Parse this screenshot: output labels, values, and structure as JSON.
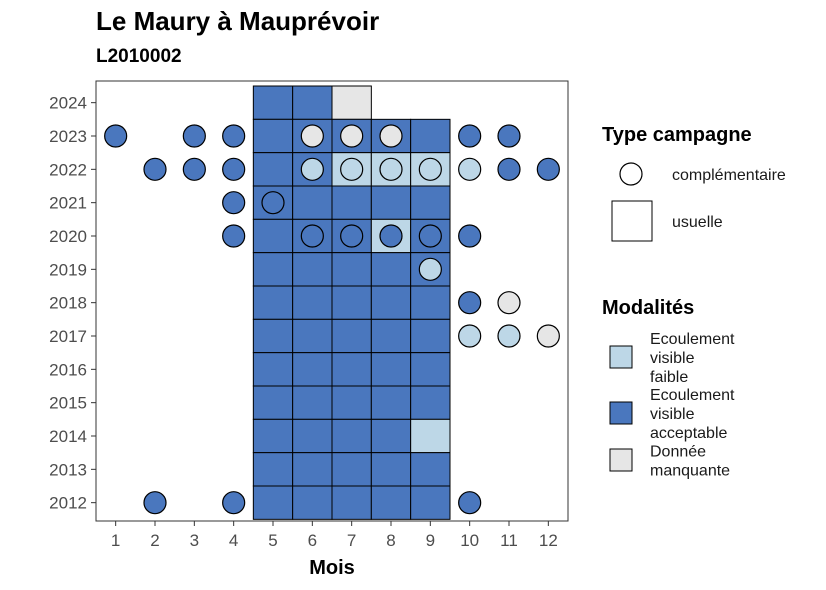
{
  "title": "Le Maury à Mauprévoir",
  "subtitle": "L2010002",
  "colors": {
    "Ecoulement visible faible": "#bdd7e7",
    "Ecoulement visible acceptable": "#4a77be",
    "Donnée manquante": "#e6e6e6"
  },
  "legend": {
    "type_title": "Type campagne",
    "type_items": [
      {
        "shape": "circle",
        "label": "complémentaire"
      },
      {
        "shape": "square",
        "label": "usuelle"
      }
    ],
    "mod_title": "Modalités",
    "mod_items": [
      {
        "key": "Ecoulement visible faible",
        "lines": [
          "Ecoulement",
          "visible",
          "faible"
        ]
      },
      {
        "key": "Ecoulement visible acceptable",
        "lines": [
          "Ecoulement",
          "visible",
          "acceptable"
        ]
      },
      {
        "key": "Donnée manquante",
        "lines": [
          "Donnée",
          "manquante"
        ]
      }
    ]
  },
  "chart_data": {
    "type": "scatter",
    "xlabel": "Mois",
    "ylabel": "",
    "x_ticks": [
      "1",
      "2",
      "3",
      "4",
      "5",
      "6",
      "7",
      "8",
      "9",
      "10",
      "11",
      "12"
    ],
    "y_ticks": [
      "2012",
      "2013",
      "2014",
      "2015",
      "2016",
      "2017",
      "2018",
      "2019",
      "2020",
      "2021",
      "2022",
      "2023",
      "2024"
    ],
    "xlim": [
      0.5,
      12.5
    ],
    "ylim": [
      2011.45,
      2024.65
    ],
    "usuelle": [
      {
        "month": 5,
        "year": 2024,
        "modalite": "Ecoulement visible acceptable"
      },
      {
        "month": 6,
        "year": 2024,
        "modalite": "Ecoulement visible acceptable"
      },
      {
        "month": 7,
        "year": 2024,
        "modalite": "Donnée manquante"
      },
      {
        "month": 5,
        "year": 2023,
        "modalite": "Ecoulement visible acceptable"
      },
      {
        "month": 6,
        "year": 2023,
        "modalite": "Ecoulement visible acceptable"
      },
      {
        "month": 7,
        "year": 2023,
        "modalite": "Ecoulement visible acceptable"
      },
      {
        "month": 8,
        "year": 2023,
        "modalite": "Ecoulement visible acceptable"
      },
      {
        "month": 9,
        "year": 2023,
        "modalite": "Ecoulement visible acceptable"
      },
      {
        "month": 5,
        "year": 2022,
        "modalite": "Ecoulement visible acceptable"
      },
      {
        "month": 6,
        "year": 2022,
        "modalite": "Ecoulement visible acceptable"
      },
      {
        "month": 7,
        "year": 2022,
        "modalite": "Ecoulement visible faible"
      },
      {
        "month": 8,
        "year": 2022,
        "modalite": "Ecoulement visible faible"
      },
      {
        "month": 9,
        "year": 2022,
        "modalite": "Ecoulement visible faible"
      },
      {
        "month": 5,
        "year": 2021,
        "modalite": "Ecoulement visible acceptable"
      },
      {
        "month": 6,
        "year": 2021,
        "modalite": "Ecoulement visible acceptable"
      },
      {
        "month": 7,
        "year": 2021,
        "modalite": "Ecoulement visible acceptable"
      },
      {
        "month": 8,
        "year": 2021,
        "modalite": "Ecoulement visible acceptable"
      },
      {
        "month": 9,
        "year": 2021,
        "modalite": "Ecoulement visible acceptable"
      },
      {
        "month": 5,
        "year": 2020,
        "modalite": "Ecoulement visible acceptable"
      },
      {
        "month": 6,
        "year": 2020,
        "modalite": "Ecoulement visible acceptable"
      },
      {
        "month": 7,
        "year": 2020,
        "modalite": "Ecoulement visible acceptable"
      },
      {
        "month": 8,
        "year": 2020,
        "modalite": "Ecoulement visible faible"
      },
      {
        "month": 9,
        "year": 2020,
        "modalite": "Ecoulement visible acceptable"
      },
      {
        "month": 5,
        "year": 2019,
        "modalite": "Ecoulement visible acceptable"
      },
      {
        "month": 6,
        "year": 2019,
        "modalite": "Ecoulement visible acceptable"
      },
      {
        "month": 7,
        "year": 2019,
        "modalite": "Ecoulement visible acceptable"
      },
      {
        "month": 8,
        "year": 2019,
        "modalite": "Ecoulement visible acceptable"
      },
      {
        "month": 9,
        "year": 2019,
        "modalite": "Ecoulement visible acceptable"
      },
      {
        "month": 5,
        "year": 2018,
        "modalite": "Ecoulement visible acceptable"
      },
      {
        "month": 6,
        "year": 2018,
        "modalite": "Ecoulement visible acceptable"
      },
      {
        "month": 7,
        "year": 2018,
        "modalite": "Ecoulement visible acceptable"
      },
      {
        "month": 8,
        "year": 2018,
        "modalite": "Ecoulement visible acceptable"
      },
      {
        "month": 9,
        "year": 2018,
        "modalite": "Ecoulement visible acceptable"
      },
      {
        "month": 5,
        "year": 2017,
        "modalite": "Ecoulement visible acceptable"
      },
      {
        "month": 6,
        "year": 2017,
        "modalite": "Ecoulement visible acceptable"
      },
      {
        "month": 7,
        "year": 2017,
        "modalite": "Ecoulement visible acceptable"
      },
      {
        "month": 8,
        "year": 2017,
        "modalite": "Ecoulement visible acceptable"
      },
      {
        "month": 9,
        "year": 2017,
        "modalite": "Ecoulement visible acceptable"
      },
      {
        "month": 5,
        "year": 2016,
        "modalite": "Ecoulement visible acceptable"
      },
      {
        "month": 6,
        "year": 2016,
        "modalite": "Ecoulement visible acceptable"
      },
      {
        "month": 7,
        "year": 2016,
        "modalite": "Ecoulement visible acceptable"
      },
      {
        "month": 8,
        "year": 2016,
        "modalite": "Ecoulement visible acceptable"
      },
      {
        "month": 9,
        "year": 2016,
        "modalite": "Ecoulement visible acceptable"
      },
      {
        "month": 5,
        "year": 2015,
        "modalite": "Ecoulement visible acceptable"
      },
      {
        "month": 6,
        "year": 2015,
        "modalite": "Ecoulement visible acceptable"
      },
      {
        "month": 7,
        "year": 2015,
        "modalite": "Ecoulement visible acceptable"
      },
      {
        "month": 8,
        "year": 2015,
        "modalite": "Ecoulement visible acceptable"
      },
      {
        "month": 9,
        "year": 2015,
        "modalite": "Ecoulement visible acceptable"
      },
      {
        "month": 5,
        "year": 2014,
        "modalite": "Ecoulement visible acceptable"
      },
      {
        "month": 6,
        "year": 2014,
        "modalite": "Ecoulement visible acceptable"
      },
      {
        "month": 7,
        "year": 2014,
        "modalite": "Ecoulement visible acceptable"
      },
      {
        "month": 8,
        "year": 2014,
        "modalite": "Ecoulement visible acceptable"
      },
      {
        "month": 9,
        "year": 2014,
        "modalite": "Ecoulement visible faible"
      },
      {
        "month": 5,
        "year": 2013,
        "modalite": "Ecoulement visible acceptable"
      },
      {
        "month": 6,
        "year": 2013,
        "modalite": "Ecoulement visible acceptable"
      },
      {
        "month": 7,
        "year": 2013,
        "modalite": "Ecoulement visible acceptable"
      },
      {
        "month": 8,
        "year": 2013,
        "modalite": "Ecoulement visible acceptable"
      },
      {
        "month": 9,
        "year": 2013,
        "modalite": "Ecoulement visible acceptable"
      },
      {
        "month": 5,
        "year": 2012,
        "modalite": "Ecoulement visible acceptable"
      },
      {
        "month": 6,
        "year": 2012,
        "modalite": "Ecoulement visible acceptable"
      },
      {
        "month": 7,
        "year": 2012,
        "modalite": "Ecoulement visible acceptable"
      },
      {
        "month": 8,
        "year": 2012,
        "modalite": "Ecoulement visible acceptable"
      },
      {
        "month": 9,
        "year": 2012,
        "modalite": "Ecoulement visible acceptable"
      }
    ],
    "complementaire": [
      {
        "month": 1,
        "year": 2023,
        "modalite": "Ecoulement visible acceptable"
      },
      {
        "month": 3,
        "year": 2023,
        "modalite": "Ecoulement visible acceptable"
      },
      {
        "month": 4,
        "year": 2023,
        "modalite": "Ecoulement visible acceptable"
      },
      {
        "month": 6,
        "year": 2023,
        "modalite": "Donnée manquante"
      },
      {
        "month": 7,
        "year": 2023,
        "modalite": "Donnée manquante"
      },
      {
        "month": 8,
        "year": 2023,
        "modalite": "Donnée manquante"
      },
      {
        "month": 10,
        "year": 2023,
        "modalite": "Ecoulement visible acceptable"
      },
      {
        "month": 11,
        "year": 2023,
        "modalite": "Ecoulement visible acceptable"
      },
      {
        "month": 2,
        "year": 2022,
        "modalite": "Ecoulement visible acceptable"
      },
      {
        "month": 3,
        "year": 2022,
        "modalite": "Ecoulement visible acceptable"
      },
      {
        "month": 4,
        "year": 2022,
        "modalite": "Ecoulement visible acceptable"
      },
      {
        "month": 6,
        "year": 2022,
        "modalite": "Ecoulement visible faible"
      },
      {
        "month": 7,
        "year": 2022,
        "modalite": "Ecoulement visible faible"
      },
      {
        "month": 8,
        "year": 2022,
        "modalite": "Ecoulement visible faible"
      },
      {
        "month": 9,
        "year": 2022,
        "modalite": "Ecoulement visible faible"
      },
      {
        "month": 10,
        "year": 2022,
        "modalite": "Ecoulement visible faible"
      },
      {
        "month": 11,
        "year": 2022,
        "modalite": "Ecoulement visible acceptable"
      },
      {
        "month": 12,
        "year": 2022,
        "modalite": "Ecoulement visible acceptable"
      },
      {
        "month": 4,
        "year": 2021,
        "modalite": "Ecoulement visible acceptable"
      },
      {
        "month": 5,
        "year": 2021,
        "modalite": "Ecoulement visible acceptable"
      },
      {
        "month": 4,
        "year": 2020,
        "modalite": "Ecoulement visible acceptable"
      },
      {
        "month": 6,
        "year": 2020,
        "modalite": "Ecoulement visible acceptable"
      },
      {
        "month": 7,
        "year": 2020,
        "modalite": "Ecoulement visible acceptable"
      },
      {
        "month": 8,
        "year": 2020,
        "modalite": "Ecoulement visible acceptable"
      },
      {
        "month": 9,
        "year": 2020,
        "modalite": "Ecoulement visible acceptable"
      },
      {
        "month": 10,
        "year": 2020,
        "modalite": "Ecoulement visible acceptable"
      },
      {
        "month": 9,
        "year": 2019,
        "modalite": "Ecoulement visible faible"
      },
      {
        "month": 10,
        "year": 2018,
        "modalite": "Ecoulement visible acceptable"
      },
      {
        "month": 11,
        "year": 2018,
        "modalite": "Donnée manquante"
      },
      {
        "month": 10,
        "year": 2017,
        "modalite": "Ecoulement visible faible"
      },
      {
        "month": 11,
        "year": 2017,
        "modalite": "Ecoulement visible faible"
      },
      {
        "month": 12,
        "year": 2017,
        "modalite": "Donnée manquante"
      },
      {
        "month": 2,
        "year": 2012,
        "modalite": "Ecoulement visible acceptable"
      },
      {
        "month": 4,
        "year": 2012,
        "modalite": "Ecoulement visible acceptable"
      },
      {
        "month": 10,
        "year": 2012,
        "modalite": "Ecoulement visible acceptable"
      }
    ]
  }
}
